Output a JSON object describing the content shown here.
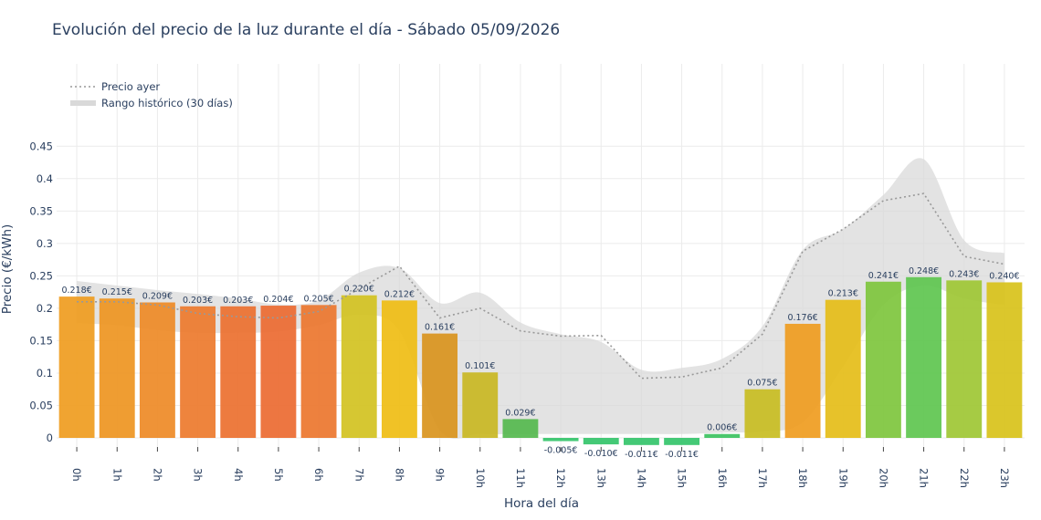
{
  "chart_data": {
    "type": "bar",
    "title": "Evolución del precio de la luz durante el día - Sábado 05/09/2026",
    "xlabel": "Hora del día",
    "ylabel": "Precio (€/kWh)",
    "ylim": [
      -0.015,
      0.45
    ],
    "yticks": [
      0,
      0.05,
      0.1,
      0.15,
      0.2,
      0.25,
      0.3,
      0.35,
      0.4,
      0.45
    ],
    "ytick_labels": [
      "0",
      "0.05",
      "0.1",
      "0.15",
      "0.2",
      "0.25",
      "0.3",
      "0.35",
      "0.4",
      "0.45"
    ],
    "categories": [
      "0h",
      "1h",
      "2h",
      "3h",
      "4h",
      "5h",
      "6h",
      "7h",
      "8h",
      "9h",
      "10h",
      "11h",
      "12h",
      "13h",
      "14h",
      "15h",
      "16h",
      "17h",
      "18h",
      "19h",
      "20h",
      "21h",
      "22h",
      "23h"
    ],
    "values": [
      0.218,
      0.215,
      0.209,
      0.203,
      0.203,
      0.204,
      0.205,
      0.22,
      0.212,
      0.161,
      0.101,
      0.029,
      -0.005,
      -0.01,
      -0.011,
      -0.011,
      0.006,
      0.075,
      0.176,
      0.213,
      0.241,
      0.248,
      0.243,
      0.24
    ],
    "value_labels": [
      "0.218€",
      "0.215€",
      "0.209€",
      "0.203€",
      "0.203€",
      "0.204€",
      "0.205€",
      "0.220€",
      "0.212€",
      "0.161€",
      "0.101€",
      "0.029€",
      "-0.005€",
      "-0.010€",
      "-0.011€",
      "-0.011€",
      "0.006€",
      "0.075€",
      "0.176€",
      "0.213€",
      "0.241€",
      "0.248€",
      "0.243€",
      "0.240€"
    ],
    "bar_colors": [
      "#ef9c1f",
      "#ee9521",
      "#ee8a26",
      "#ed7a2c",
      "#ec702f",
      "#ec6a31",
      "#ec762e",
      "#d3c221",
      "#efbd14",
      "#d9941d",
      "#c9b723",
      "#55b94e",
      "#34c46a",
      "#34c46a",
      "#34c46a",
      "#34c46a",
      "#3cc260",
      "#c8bd22",
      "#ef9c1f",
      "#e5bd18",
      "#7ec63d",
      "#5ec64f",
      "#9ec734",
      "#d8c21a"
    ],
    "series": [
      {
        "name": "Precio ayer",
        "style": "dotted",
        "color": "#999999",
        "values": [
          0.21,
          0.21,
          0.205,
          0.192,
          0.187,
          0.185,
          0.195,
          0.23,
          0.265,
          0.185,
          0.2,
          0.165,
          0.157,
          0.158,
          0.092,
          0.094,
          0.108,
          0.16,
          0.288,
          0.322,
          0.366,
          0.377,
          0.28,
          0.268
        ]
      },
      {
        "name": "Rango histórico (30 días)",
        "style": "band",
        "color": "#d9d9d9",
        "upper": [
          0.242,
          0.235,
          0.228,
          0.222,
          0.215,
          0.206,
          0.212,
          0.255,
          0.262,
          0.208,
          0.224,
          0.178,
          0.16,
          0.148,
          0.105,
          0.108,
          0.122,
          0.172,
          0.29,
          0.322,
          0.375,
          0.43,
          0.305,
          0.285
        ],
        "lower": [
          0.177,
          0.174,
          0.166,
          0.162,
          0.162,
          0.164,
          0.174,
          0.19,
          0.165,
          0.012,
          0.006,
          0.006,
          0.006,
          0.006,
          0.006,
          0.006,
          0.008,
          0.01,
          0.024,
          0.11,
          0.205,
          0.235,
          0.215,
          0.205
        ]
      }
    ],
    "legend_position": "top-left",
    "grid": true
  }
}
